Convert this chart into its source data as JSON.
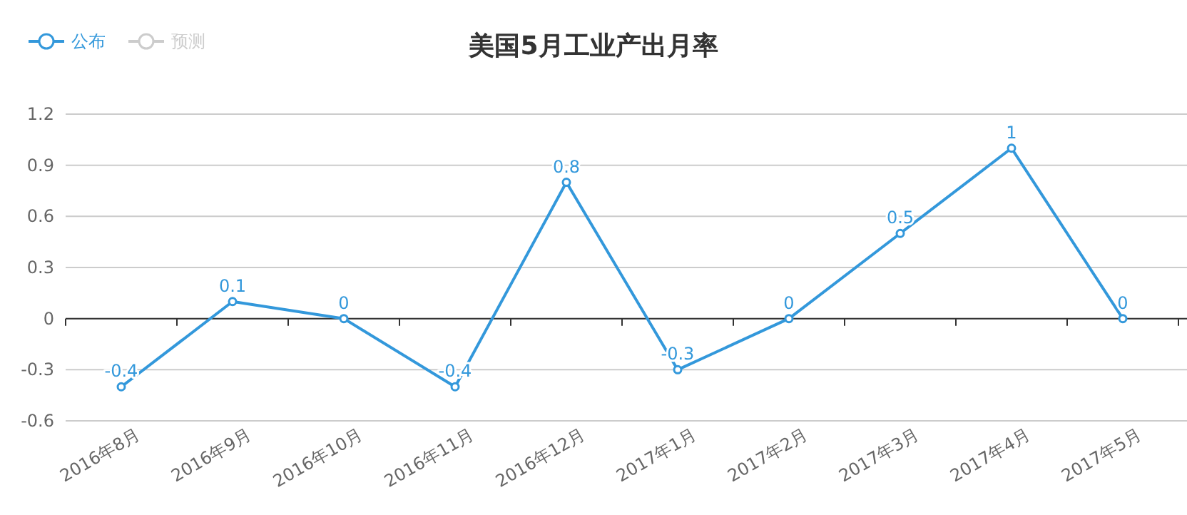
{
  "chart_data": {
    "type": "line",
    "title": "美国5月工业产出月率",
    "categories": [
      "2016年8月",
      "2016年9月",
      "2016年10月",
      "2016年11月",
      "2016年12月",
      "2017年1月",
      "2017年2月",
      "2017年3月",
      "2017年4月",
      "2017年5月"
    ],
    "series": [
      {
        "name": "公布",
        "color": "#3398db",
        "values": [
          -0.4,
          0.1,
          0,
          -0.4,
          0.8,
          -0.3,
          0,
          0.5,
          1,
          0
        ]
      },
      {
        "name": "预测",
        "color": "#cccccc",
        "values": [
          null,
          null,
          null,
          null,
          null,
          null,
          null,
          null,
          null,
          null
        ]
      }
    ],
    "ylim": [
      -0.6,
      1.2
    ],
    "yticks": [
      -0.6,
      -0.3,
      0,
      0.3,
      0.6,
      0.9,
      1.2
    ],
    "grid": "y",
    "legend": "top left",
    "marker": "circle",
    "line_style": "solid",
    "data_labels": true
  }
}
